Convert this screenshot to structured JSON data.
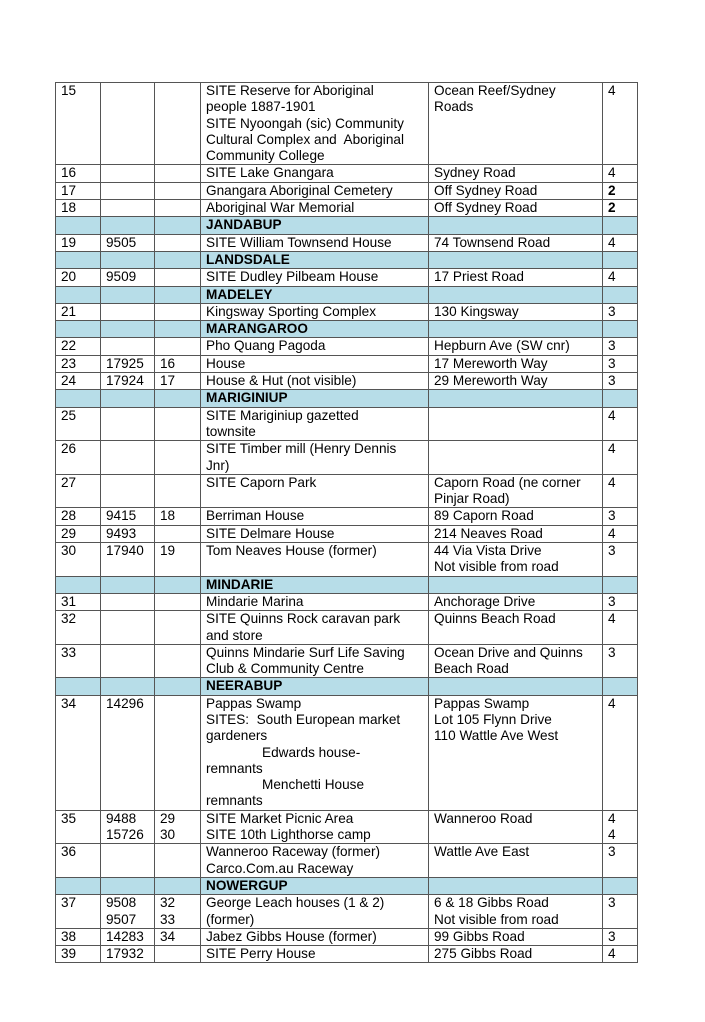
{
  "section_color": "#b7dde8",
  "rows": [
    {
      "type": "data",
      "c": [
        [
          "15"
        ],
        [
          ""
        ],
        [
          ""
        ],
        [
          "SITE Reserve for Aboriginal",
          "people 1887-1901",
          "SITE Nyoongah (sic) Community",
          "Cultural Complex and  Aboriginal",
          "Community College"
        ],
        [
          "Ocean Reef/Sydney",
          "Roads"
        ],
        [
          "4"
        ]
      ]
    },
    {
      "type": "data",
      "c": [
        [
          "16"
        ],
        [
          ""
        ],
        [
          ""
        ],
        [
          "SITE Lake Gnangara"
        ],
        [
          "Sydney Road"
        ],
        [
          "4"
        ]
      ]
    },
    {
      "type": "data",
      "bold_last": true,
      "c": [
        [
          "17"
        ],
        [
          ""
        ],
        [
          ""
        ],
        [
          "Gnangara Aboriginal Cemetery"
        ],
        [
          "Off Sydney Road"
        ],
        [
          "2"
        ]
      ]
    },
    {
      "type": "data",
      "bold_last": true,
      "c": [
        [
          "18"
        ],
        [
          ""
        ],
        [
          ""
        ],
        [
          "Aboriginal War Memorial"
        ],
        [
          "Off Sydney Road"
        ],
        [
          "2"
        ]
      ]
    },
    {
      "type": "section",
      "title": "JANDABUP"
    },
    {
      "type": "data",
      "c": [
        [
          "19"
        ],
        [
          "9505"
        ],
        [
          ""
        ],
        [
          "SITE William Townsend House"
        ],
        [
          "74 Townsend Road"
        ],
        [
          "4"
        ]
      ]
    },
    {
      "type": "section",
      "title": "LANDSDALE"
    },
    {
      "type": "data",
      "c": [
        [
          "20"
        ],
        [
          "9509"
        ],
        [
          ""
        ],
        [
          "SITE Dudley Pilbeam House"
        ],
        [
          "17 Priest Road"
        ],
        [
          "4"
        ]
      ]
    },
    {
      "type": "section",
      "title": "MADELEY"
    },
    {
      "type": "data",
      "c": [
        [
          "21"
        ],
        [
          ""
        ],
        [
          ""
        ],
        [
          "Kingsway Sporting Complex"
        ],
        [
          "130 Kingsway"
        ],
        [
          "3"
        ]
      ]
    },
    {
      "type": "section",
      "title": "MARANGAROO"
    },
    {
      "type": "data",
      "c": [
        [
          "22"
        ],
        [
          ""
        ],
        [
          ""
        ],
        [
          "Pho Quang Pagoda"
        ],
        [
          "Hepburn Ave (SW cnr)"
        ],
        [
          "3"
        ]
      ]
    },
    {
      "type": "data",
      "c": [
        [
          "23"
        ],
        [
          "17925"
        ],
        [
          "16"
        ],
        [
          "House"
        ],
        [
          "17 Mereworth Way"
        ],
        [
          "3"
        ]
      ]
    },
    {
      "type": "data",
      "c": [
        [
          "24"
        ],
        [
          "17924"
        ],
        [
          "17"
        ],
        [
          "House & Hut (not visible)"
        ],
        [
          "29 Mereworth Way"
        ],
        [
          "3"
        ]
      ]
    },
    {
      "type": "section",
      "title": "MARIGINIUP"
    },
    {
      "type": "data",
      "c": [
        [
          "25"
        ],
        [
          ""
        ],
        [
          ""
        ],
        [
          "SITE Mariginiup gazetted",
          "townsite"
        ],
        [
          ""
        ],
        [
          "4"
        ]
      ]
    },
    {
      "type": "data",
      "c": [
        [
          "26"
        ],
        [
          ""
        ],
        [
          ""
        ],
        [
          "SITE Timber mill (Henry Dennis",
          "Jnr)"
        ],
        [
          ""
        ],
        [
          "4"
        ]
      ]
    },
    {
      "type": "data",
      "c": [
        [
          "27"
        ],
        [
          ""
        ],
        [
          ""
        ],
        [
          "SITE Caporn Park"
        ],
        [
          "Caporn Road (ne corner",
          "Pinjar Road)"
        ],
        [
          "4"
        ]
      ]
    },
    {
      "type": "data",
      "c": [
        [
          "28"
        ],
        [
          "9415"
        ],
        [
          "18"
        ],
        [
          "Berriman House"
        ],
        [
          "89 Caporn Road"
        ],
        [
          "3"
        ]
      ]
    },
    {
      "type": "data",
      "c": [
        [
          "29"
        ],
        [
          "9493"
        ],
        [
          ""
        ],
        [
          "SITE Delmare House"
        ],
        [
          "214 Neaves Road"
        ],
        [
          "4"
        ]
      ]
    },
    {
      "type": "data",
      "c": [
        [
          "30"
        ],
        [
          "17940"
        ],
        [
          "19"
        ],
        [
          "Tom Neaves House (former)"
        ],
        [
          "44 Via Vista Drive",
          "Not visible from road"
        ],
        [
          "3"
        ]
      ]
    },
    {
      "type": "section",
      "title": "MINDARIE"
    },
    {
      "type": "data",
      "c": [
        [
          "31"
        ],
        [
          ""
        ],
        [
          ""
        ],
        [
          "Mindarie Marina"
        ],
        [
          "Anchorage Drive"
        ],
        [
          "3"
        ]
      ]
    },
    {
      "type": "data",
      "c": [
        [
          "32"
        ],
        [
          ""
        ],
        [
          ""
        ],
        [
          "SITE Quinns Rock caravan park",
          "and store"
        ],
        [
          "Quinns Beach Road"
        ],
        [
          "4"
        ]
      ]
    },
    {
      "type": "data",
      "c": [
        [
          "33"
        ],
        [
          ""
        ],
        [
          ""
        ],
        [
          "Quinns Mindarie Surf Life Saving",
          "Club & Community Centre"
        ],
        [
          "Ocean Drive and Quinns",
          "Beach Road"
        ],
        [
          "3"
        ]
      ]
    },
    {
      "type": "section",
      "title": "NEERABUP"
    },
    {
      "type": "data",
      "c": [
        [
          "34"
        ],
        [
          "14296"
        ],
        [
          ""
        ],
        [
          "Pappas Swamp",
          "SITES:  South European market",
          "gardeners",
          ">Edwards house-",
          "remnants",
          ">Menchetti House",
          "remnants"
        ],
        [
          "Pappas Swamp",
          "Lot 105 Flynn Drive",
          "110 Wattle Ave West"
        ],
        [
          "4"
        ]
      ]
    },
    {
      "type": "data",
      "c": [
        [
          "35"
        ],
        [
          "9488",
          "15726"
        ],
        [
          "29",
          "30"
        ],
        [
          "SITE Market Picnic Area",
          "SITE 10th Lighthorse camp"
        ],
        [
          "Wanneroo Road"
        ],
        [
          "4",
          "4"
        ]
      ]
    },
    {
      "type": "data",
      "c": [
        [
          "36"
        ],
        [
          ""
        ],
        [
          ""
        ],
        [
          "Wanneroo Raceway (former)",
          "Carco.Com.au Raceway"
        ],
        [
          "Wattle Ave East"
        ],
        [
          "3"
        ]
      ]
    },
    {
      "type": "section",
      "title": "NOWERGUP"
    },
    {
      "type": "data",
      "c": [
        [
          "37"
        ],
        [
          "9508",
          "9507"
        ],
        [
          "32",
          "33"
        ],
        [
          "George Leach houses (1 & 2)",
          "(former)"
        ],
        [
          "6 & 18 Gibbs Road",
          "Not visible from road"
        ],
        [
          "3"
        ]
      ]
    },
    {
      "type": "data",
      "c": [
        [
          "38"
        ],
        [
          "14283"
        ],
        [
          "34"
        ],
        [
          "Jabez Gibbs House (former)"
        ],
        [
          "99 Gibbs Road"
        ],
        [
          "3"
        ]
      ]
    },
    {
      "type": "data",
      "c": [
        [
          "39"
        ],
        [
          "17932"
        ],
        [
          ""
        ],
        [
          "SITE Perry House"
        ],
        [
          "275 Gibbs Road"
        ],
        [
          "4"
        ]
      ]
    }
  ]
}
